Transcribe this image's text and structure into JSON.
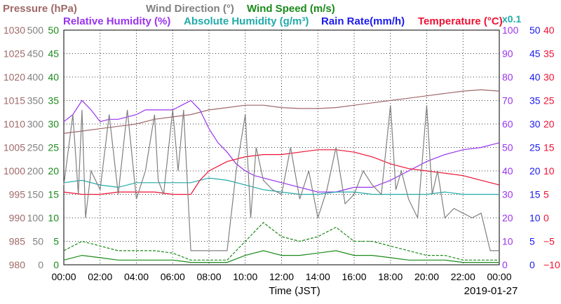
{
  "chart_data": {
    "type": "line",
    "date": "2019-01-27",
    "xlabel": "Time (JST)",
    "x_ticks": [
      "00:00",
      "02:00",
      "04:00",
      "06:00",
      "08:00",
      "10:00",
      "12:00",
      "14:00",
      "16:00",
      "18:00",
      "20:00",
      "22:00",
      "00:00"
    ],
    "x_range_hours": [
      0,
      24
    ],
    "grid": true,
    "legend": {
      "row1": [
        {
          "text": "Pressure (hPa)",
          "color": "#a06868"
        },
        {
          "text": "Wind Direction (°)",
          "color": "#808080"
        },
        {
          "text": "Wind Speed (m/s)",
          "color": "#1a8a1a"
        }
      ],
      "row2": [
        {
          "text": "Relative Humidity (%)",
          "color": "#9933ee"
        },
        {
          "text": "Absolute Humidity (g/m³)",
          "color": "#22aaaa"
        },
        {
          "text": "Rain Rate(mm/h)",
          "color": "#1a1aee"
        },
        {
          "text": "Temperature (°C)",
          "color": "#ee1133"
        }
      ],
      "multiplier": {
        "text": "x0.1",
        "color": "#22aaaa"
      }
    },
    "axes": {
      "pressure": {
        "color": "#a06868",
        "range": [
          980,
          1030
        ],
        "ticks": [
          "1030",
          "1025",
          "1020",
          "1015",
          "1010",
          "1005",
          "1000",
          "995",
          "990",
          "985",
          "980"
        ]
      },
      "wind_direction": {
        "color": "#808080",
        "range": [
          0,
          500
        ],
        "ticks": [
          "500",
          "450",
          "400",
          "350",
          "300",
          "250",
          "200",
          "150",
          "100",
          "50",
          "0"
        ]
      },
      "wind_speed": {
        "color": "#1a8a1a",
        "range": [
          0,
          50
        ],
        "ticks": [
          "50",
          "45",
          "40",
          "35",
          "30",
          "25",
          "20",
          "15",
          "10",
          "5",
          "0"
        ]
      },
      "humidity": {
        "color": "#9933ee",
        "range": [
          0,
          100
        ],
        "ticks": [
          "100",
          "90",
          "80",
          "70",
          "60",
          "50",
          "40",
          "30",
          "20",
          "10",
          "0"
        ]
      },
      "rain_rate": {
        "color": "#1a1aee",
        "range": [
          0,
          50
        ],
        "ticks": [
          "50",
          "45",
          "40",
          "35",
          "30",
          "25",
          "20",
          "15",
          "10",
          "5",
          "0"
        ]
      },
      "temperature": {
        "color": "#ee1133",
        "range": [
          -10,
          40
        ],
        "ticks": [
          "40",
          "35",
          "30",
          "25",
          "20",
          "15",
          "10",
          "5",
          "0",
          "−5",
          "−10"
        ]
      }
    },
    "series": [
      {
        "name": "Pressure (hPa)",
        "axis": "pressure",
        "color": "#a06868",
        "x": [
          0,
          1,
          2,
          3,
          4,
          5,
          6,
          7,
          8,
          9,
          10,
          11,
          12,
          13,
          14,
          15,
          16,
          17,
          18,
          19,
          20,
          21,
          22,
          23,
          24
        ],
        "y": [
          1008,
          1008.5,
          1009,
          1009.5,
          1010,
          1011,
          1011.5,
          1012,
          1013,
          1013.5,
          1014,
          1014,
          1013.5,
          1013.3,
          1013.3,
          1013.5,
          1014,
          1014.5,
          1015,
          1015.5,
          1016,
          1016.5,
          1017,
          1017.3,
          1017
        ]
      },
      {
        "name": "Relative Humidity (%)",
        "axis": "humidity",
        "color": "#9933ee",
        "x": [
          0,
          0.5,
          1,
          1.5,
          2,
          2.5,
          3,
          4,
          4.5,
          5,
          6,
          6.5,
          7,
          7.5,
          8,
          8.5,
          9,
          9.5,
          10,
          10.5,
          11,
          12,
          13,
          14,
          15,
          16,
          17,
          18,
          19,
          20,
          21,
          22,
          23,
          24
        ],
        "y": [
          61,
          64,
          70,
          66,
          61,
          62,
          62,
          64,
          66,
          66,
          66,
          68,
          70,
          66,
          58,
          52,
          48,
          43,
          40,
          38,
          37,
          35,
          33,
          31,
          31,
          33,
          33,
          36,
          40,
          44,
          47,
          49,
          50,
          52
        ]
      },
      {
        "name": "Absolute Humidity (g/m³)",
        "axis": "humidity",
        "color": "#22aaaa",
        "x": [
          0,
          1,
          2,
          3,
          4,
          5,
          6,
          7,
          8,
          9,
          10,
          11,
          12,
          13,
          14,
          15,
          16,
          17,
          18,
          19,
          20,
          21,
          22,
          23,
          24
        ],
        "y": [
          35,
          36,
          34,
          33,
          35,
          35,
          35,
          35,
          37,
          36,
          34,
          32,
          31,
          30,
          30,
          31,
          31,
          30,
          30,
          30,
          30,
          31,
          30,
          30,
          30
        ]
      },
      {
        "name": "Temperature (°C)",
        "axis": "temperature",
        "color": "#ee1133",
        "x": [
          0,
          1,
          2,
          3,
          4,
          5,
          6,
          6.5,
          7,
          7.5,
          8,
          9,
          10,
          11,
          12,
          13,
          14,
          15,
          16,
          17,
          18,
          19,
          20,
          21,
          22,
          23,
          24
        ],
        "y": [
          5.5,
          5,
          5,
          5.5,
          5.5,
          5.5,
          5,
          5,
          5,
          8,
          10,
          12,
          13,
          13.5,
          13.5,
          14,
          14.5,
          14.5,
          14,
          13,
          11.5,
          10.5,
          10,
          9.5,
          9,
          8,
          7
        ]
      },
      {
        "name": "Wind Speed (m/s)",
        "axis": "wind_speed",
        "color": "#1a8a1a",
        "x": [
          0,
          1,
          2,
          3,
          4,
          5,
          6,
          7,
          8,
          9,
          10,
          11,
          12,
          13,
          14,
          15,
          16,
          17,
          18,
          19,
          20,
          21,
          22,
          23,
          24
        ],
        "y": [
          1,
          2,
          1.5,
          1,
          1,
          1,
          1,
          0.5,
          0.5,
          0.5,
          2,
          3,
          2,
          2,
          2.5,
          3,
          2,
          2,
          1.5,
          1,
          1,
          1,
          0.5,
          0.5,
          0.5
        ]
      },
      {
        "name": "Wind Speed gust (m/s)",
        "axis": "wind_speed",
        "color": "#1a8a1a",
        "dashed": true,
        "x": [
          0,
          1,
          2,
          3,
          4,
          5,
          6,
          7,
          8,
          9,
          10,
          11,
          12,
          13,
          14,
          15,
          16,
          17,
          18,
          19,
          20,
          21,
          22,
          23,
          24
        ],
        "y": [
          3,
          5,
          4,
          3,
          3,
          3,
          2.5,
          1,
          1,
          1,
          5,
          9,
          6,
          5,
          6,
          8,
          5,
          5,
          4,
          3,
          2,
          2,
          1,
          1,
          1
        ]
      },
      {
        "name": "Wind Direction (°)",
        "axis": "wind_direction",
        "color": "#808080",
        "x": [
          0,
          0.5,
          0.8,
          1,
          1.2,
          1.5,
          2,
          2.5,
          3,
          3.5,
          4,
          4.5,
          5,
          5.2,
          5.5,
          6,
          6.3,
          6.6,
          7,
          8,
          9,
          9.5,
          10,
          10.3,
          10.6,
          11,
          11.5,
          12,
          12.5,
          13,
          13.5,
          14,
          14.5,
          15,
          15.5,
          16,
          16.5,
          17,
          17.5,
          18,
          18.3,
          18.6,
          19,
          19.5,
          20,
          20.3,
          20.6,
          21,
          21.5,
          22,
          22.5,
          23,
          23.5,
          24
        ],
        "y": [
          170,
          320,
          150,
          330,
          100,
          200,
          160,
          320,
          150,
          330,
          140,
          200,
          320,
          180,
          150,
          330,
          200,
          330,
          30,
          30,
          30,
          200,
          320,
          100,
          250,
          180,
          160,
          150,
          250,
          140,
          200,
          100,
          160,
          250,
          130,
          150,
          200,
          170,
          150,
          340,
          160,
          200,
          140,
          100,
          340,
          150,
          200,
          100,
          120,
          110,
          100,
          110,
          30,
          30
        ]
      }
    ]
  }
}
